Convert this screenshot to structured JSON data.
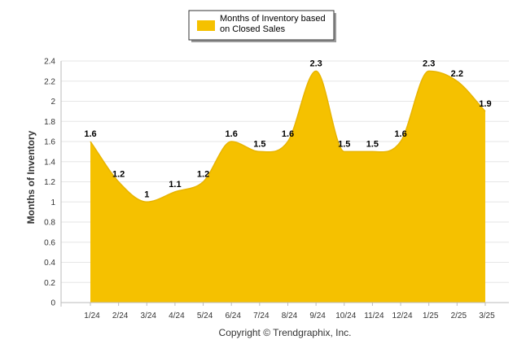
{
  "chart_data": {
    "type": "area",
    "categories": [
      "1/24",
      "2/24",
      "3/24",
      "4/24",
      "5/24",
      "6/24",
      "7/24",
      "8/24",
      "9/24",
      "10/24",
      "11/24",
      "12/24",
      "1/25",
      "2/25",
      "3/25"
    ],
    "series": [
      {
        "name": "Months of Inventory based on Closed Sales",
        "values": [
          1.6,
          1.2,
          1,
          1.1,
          1.2,
          1.6,
          1.5,
          1.6,
          2.3,
          1.5,
          1.5,
          1.6,
          2.3,
          2.2,
          1.9
        ],
        "labels": [
          "1.6",
          "1.2",
          "1",
          "1.1",
          "1.2",
          "1.6",
          "1.5",
          "1.6",
          "2.3",
          "1.5",
          "1.5",
          "1.6",
          "2.3",
          "2.2",
          "1.9"
        ],
        "color": "#f5c100"
      }
    ],
    "ylabel": "Months of Inventory",
    "xlabel": "",
    "ylim": [
      0,
      2.4
    ],
    "yticks": [
      "0",
      "0.2",
      "0.4",
      "0.6",
      "0.8",
      "1",
      "1.2",
      "1.4",
      "1.6",
      "1.8",
      "2",
      "2.2",
      "2.4"
    ],
    "grid": true,
    "legend_position": "top-center"
  },
  "legend": {
    "line1": "Months of Inventory based",
    "line2": "on Closed Sales"
  },
  "footer": {
    "copyright": "Copyright © Trendgraphix, Inc."
  },
  "colors": {
    "area": "#f5c100",
    "grid": "#e6e6e6",
    "axis": "#bbbbbb"
  }
}
